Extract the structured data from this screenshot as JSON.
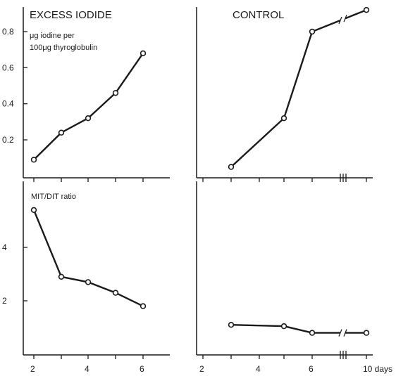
{
  "chart_data": [
    {
      "type": "line",
      "title": "EXCESS IODIDE",
      "ylabel": "μg iodine per 100μg thyroglobulin",
      "x": [
        2,
        3,
        4,
        5,
        6
      ],
      "xlim": [
        1.9,
        7.0
      ],
      "ylim": [
        0.0,
        0.9
      ],
      "yticks": [
        0.2,
        0.4,
        0.6,
        0.8
      ],
      "y_tick_labels": [
        "0.2",
        "0.4",
        "0.6",
        "0.8"
      ],
      "series": [
        {
          "values": [
            0.09,
            0.24,
            0.32,
            0.46,
            0.68
          ]
        }
      ]
    },
    {
      "type": "line",
      "title": "CONTROL",
      "x": [
        3,
        5,
        6,
        10
      ],
      "xlim": [
        1.0,
        10.5
      ],
      "ylim": [
        0.0,
        0.9
      ],
      "axis_break_between_x": [
        6,
        10
      ],
      "series": [
        {
          "values": [
            0.05,
            0.32,
            0.8,
            0.92
          ]
        }
      ]
    },
    {
      "type": "line",
      "ylabel": "MIT/DIT ratio",
      "x": [
        2,
        3,
        4,
        5,
        6
      ],
      "xlim": [
        1.9,
        7.0
      ],
      "ylim": [
        0.0,
        6.0
      ],
      "yticks": [
        2,
        4
      ],
      "y_tick_labels": [
        "2",
        "4"
      ],
      "xticks": [
        2,
        3,
        4,
        5,
        6
      ],
      "x_tick_labels": [
        "2",
        "",
        "4",
        "",
        "6"
      ],
      "series": [
        {
          "values": [
            5.4,
            2.9,
            2.7,
            2.3,
            1.8
          ]
        }
      ]
    },
    {
      "type": "line",
      "x": [
        3,
        5,
        6,
        10
      ],
      "xlim": [
        1.0,
        10.5
      ],
      "ylim": [
        0.0,
        6.0
      ],
      "axis_break_between_x": [
        6,
        10
      ],
      "xticks": [
        2,
        3,
        4,
        5,
        6,
        10
      ],
      "x_tick_labels": [
        "2",
        "",
        "4",
        "",
        "6",
        "10 days"
      ],
      "series": [
        {
          "values": [
            1.1,
            1.05,
            0.8,
            0.8
          ]
        }
      ]
    }
  ]
}
